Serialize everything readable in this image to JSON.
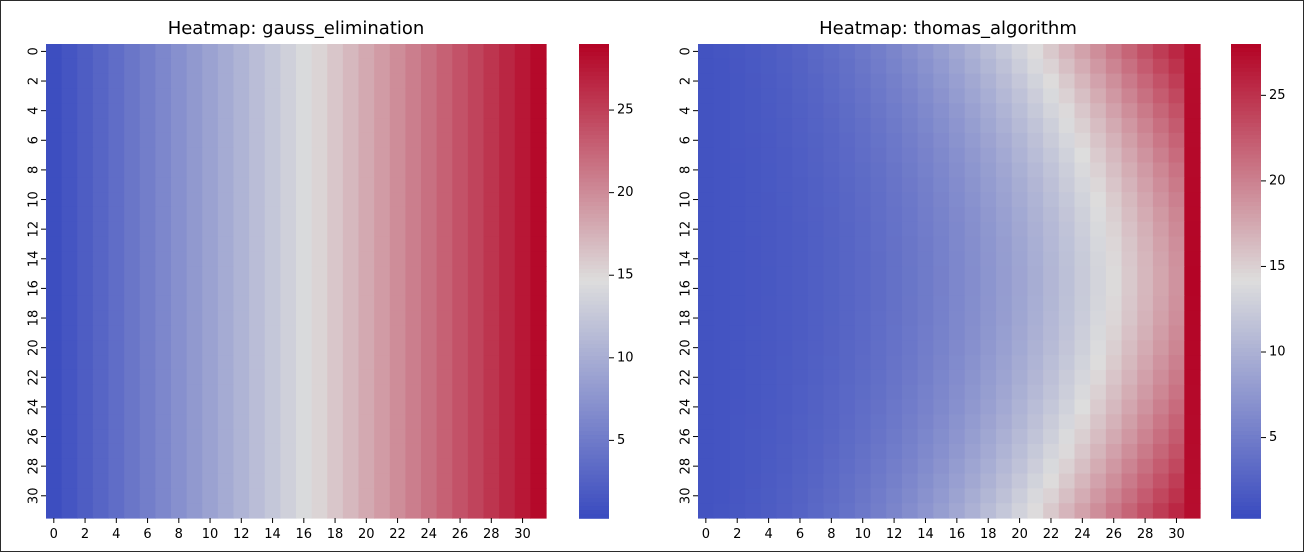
{
  "chart_data": [
    {
      "type": "heatmap",
      "title": "Heatmap: gauss_elimination",
      "rows": 32,
      "cols": 32,
      "x_tick_labels": [
        "0",
        "2",
        "4",
        "6",
        "8",
        "10",
        "12",
        "14",
        "16",
        "18",
        "20",
        "22",
        "24",
        "26",
        "28",
        "30"
      ],
      "y_tick_labels": [
        "0",
        "2",
        "4",
        "6",
        "8",
        "10",
        "12",
        "14",
        "16",
        "18",
        "20",
        "22",
        "24",
        "26",
        "28",
        "30"
      ],
      "colormap": "coolwarm",
      "vmin": 0.3,
      "vmax": 29,
      "colorbar_ticks": [
        5,
        10,
        15,
        20,
        25
      ],
      "pattern": "column_gradient",
      "value_at_left_edge": 0.5,
      "value_at_right_edge": 28.7
    },
    {
      "type": "heatmap",
      "title": "Heatmap: thomas_algorithm",
      "rows": 32,
      "cols": 32,
      "x_tick_labels": [
        "0",
        "2",
        "4",
        "6",
        "8",
        "10",
        "12",
        "14",
        "16",
        "18",
        "20",
        "22",
        "24",
        "26",
        "28",
        "30"
      ],
      "y_tick_labels": [
        "0",
        "2",
        "4",
        "6",
        "8",
        "10",
        "12",
        "14",
        "16",
        "18",
        "20",
        "22",
        "24",
        "26",
        "28",
        "30"
      ],
      "colormap": "coolwarm",
      "vmin": 0.3,
      "vmax": 28,
      "colorbar_ticks": [
        5,
        10,
        15,
        20,
        25
      ],
      "pattern": "right_boundary_bowl",
      "value_at_right_boundary": 28,
      "value_at_center_right": 20,
      "value_at_corner_right": 27
    }
  ],
  "colors": {
    "cold": "#3b4cc0",
    "mid": "#dddddd",
    "hot": "#b40426"
  }
}
